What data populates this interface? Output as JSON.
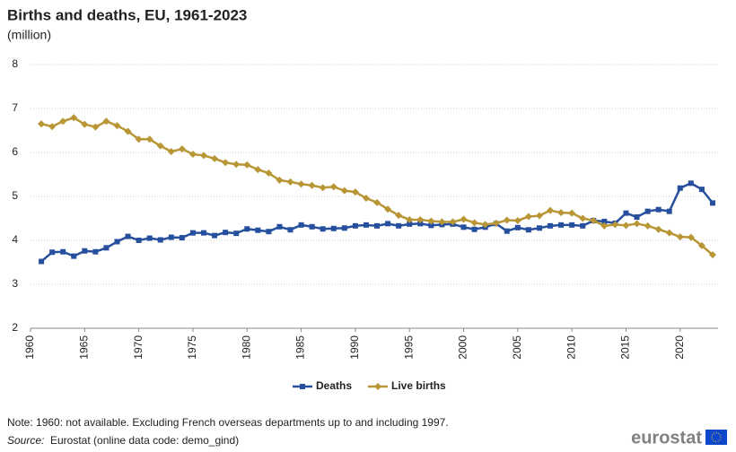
{
  "chart_data": {
    "type": "line",
    "title": "Births and deaths, EU, 1961-2023",
    "subtitle": "(million)",
    "x": [
      1961,
      1962,
      1963,
      1964,
      1965,
      1966,
      1967,
      1968,
      1969,
      1970,
      1971,
      1972,
      1973,
      1974,
      1975,
      1976,
      1977,
      1978,
      1979,
      1980,
      1981,
      1982,
      1983,
      1984,
      1985,
      1986,
      1987,
      1988,
      1989,
      1990,
      1991,
      1992,
      1993,
      1994,
      1995,
      1996,
      1997,
      1998,
      1999,
      2000,
      2001,
      2002,
      2003,
      2004,
      2005,
      2006,
      2007,
      2008,
      2009,
      2010,
      2011,
      2012,
      2013,
      2014,
      2015,
      2016,
      2017,
      2018,
      2019,
      2020,
      2021,
      2022,
      2023
    ],
    "series": [
      {
        "name": "Deaths",
        "color": "#264f9e",
        "marker": "square",
        "values": [
          3.52,
          3.73,
          3.74,
          3.64,
          3.76,
          3.74,
          3.83,
          3.97,
          4.09,
          4.0,
          4.05,
          4.01,
          4.07,
          4.06,
          4.17,
          4.17,
          4.11,
          4.18,
          4.16,
          4.26,
          4.23,
          4.2,
          4.31,
          4.24,
          4.35,
          4.31,
          4.26,
          4.27,
          4.28,
          4.33,
          4.35,
          4.33,
          4.38,
          4.33,
          4.37,
          4.38,
          4.34,
          4.36,
          4.37,
          4.3,
          4.25,
          4.3,
          4.38,
          4.21,
          4.29,
          4.24,
          4.28,
          4.33,
          4.35,
          4.35,
          4.33,
          4.45,
          4.43,
          4.39,
          4.62,
          4.53,
          4.66,
          4.7,
          4.66,
          5.19,
          5.3,
          5.16,
          4.85
        ]
      },
      {
        "name": "Live births",
        "color": "#b99635",
        "marker": "diamond",
        "values": [
          6.65,
          6.59,
          6.71,
          6.79,
          6.64,
          6.58,
          6.71,
          6.61,
          6.48,
          6.3,
          6.3,
          6.15,
          6.02,
          6.08,
          5.96,
          5.93,
          5.86,
          5.77,
          5.73,
          5.72,
          5.61,
          5.53,
          5.37,
          5.33,
          5.28,
          5.25,
          5.2,
          5.22,
          5.13,
          5.1,
          4.96,
          4.86,
          4.71,
          4.57,
          4.47,
          4.47,
          4.44,
          4.42,
          4.42,
          4.48,
          4.4,
          4.36,
          4.39,
          4.46,
          4.45,
          4.54,
          4.56,
          4.68,
          4.63,
          4.62,
          4.5,
          4.45,
          4.33,
          4.36,
          4.34,
          4.38,
          4.33,
          4.25,
          4.17,
          4.08,
          4.07,
          3.88,
          3.67
        ]
      }
    ],
    "xlim": [
      1960,
      2023.5
    ],
    "xticks": [
      1960,
      1965,
      1970,
      1975,
      1980,
      1985,
      1990,
      1995,
      2000,
      2005,
      2010,
      2015,
      2020
    ],
    "ylim": [
      2,
      8
    ],
    "yticks": [
      2,
      3,
      4,
      5,
      6,
      7,
      8
    ],
    "grid": true,
    "legend": "bottom"
  },
  "footer": {
    "note": "Note: 1960: not available. Excluding French overseas departments up to and including 1997.",
    "source_label": "Source:",
    "source_text": "Eurostat (online data code: demo_gind)",
    "logo": "eurostat"
  }
}
